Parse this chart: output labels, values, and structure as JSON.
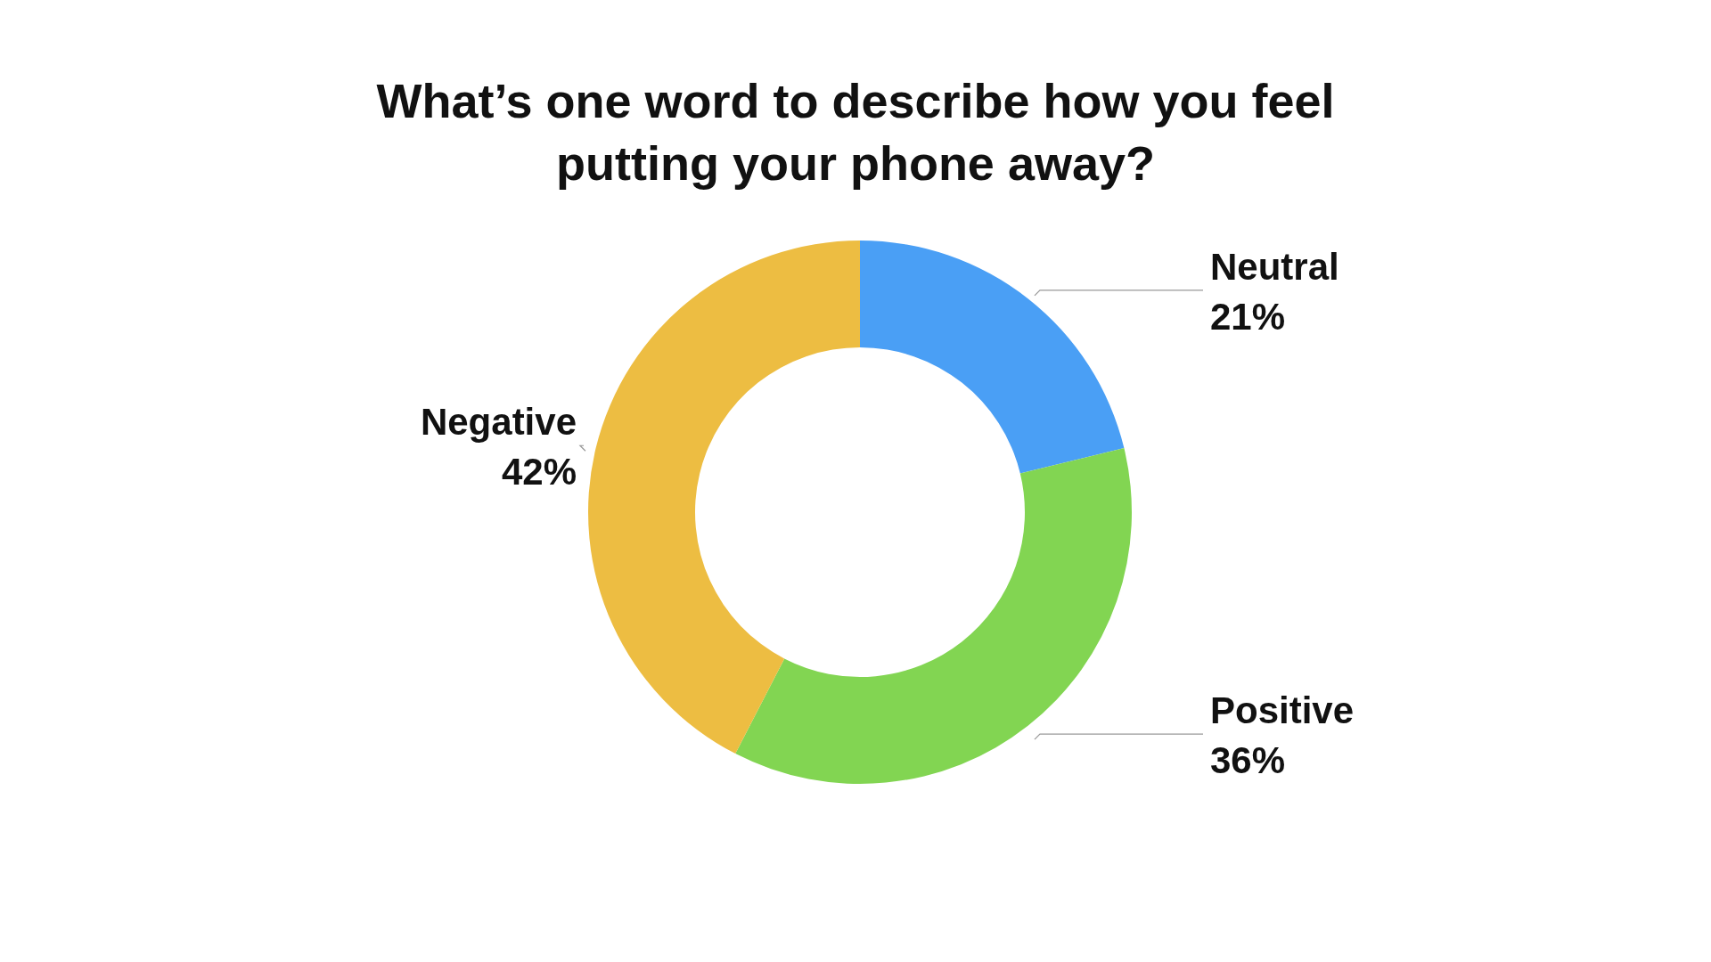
{
  "chart_data": {
    "type": "donut",
    "title": "What’s one word to describe how you feel putting your phone away?",
    "categories": [
      "Neutral",
      "Positive",
      "Negative"
    ],
    "values": [
      21,
      36,
      42
    ],
    "colors": [
      "#4a9ff5",
      "#82d552",
      "#edbd42"
    ],
    "value_labels": [
      "21%",
      "36%",
      "42%"
    ]
  }
}
